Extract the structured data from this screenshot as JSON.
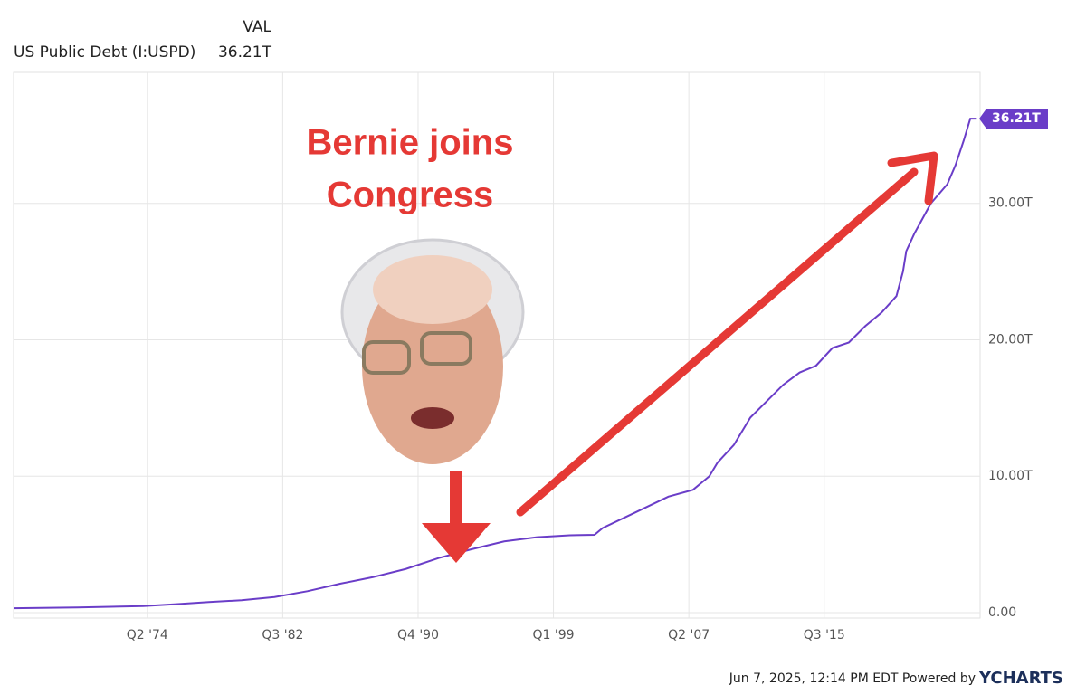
{
  "chart_data": {
    "type": "line",
    "header": {
      "column": "VAL",
      "series_label": "US Public Debt (I:USPD)",
      "current_value": "36.21T"
    },
    "annotation": {
      "lines": [
        "Bernie joins",
        "Congress"
      ]
    },
    "footer": {
      "timestamp": "Jun 7, 2025, 12:14 PM EDT Powered by",
      "brand": "YCHARTS"
    },
    "x": [
      1966.1,
      1970,
      1974,
      1976,
      1978,
      1980,
      1982,
      1984,
      1986,
      1988,
      1990,
      1992,
      1994,
      1996,
      1998,
      2000,
      2001.5,
      2002,
      2004,
      2006,
      2007.5,
      2008.5,
      2009,
      2010,
      2011,
      2012,
      2013,
      2014,
      2015,
      2016,
      2017,
      2018,
      2019,
      2019.9,
      2020.3,
      2020.5,
      2021,
      2022,
      2023,
      2023.5,
      2024,
      2024.4,
      2024.8
    ],
    "series": [
      {
        "name": "US Public Debt (I:USPD)",
        "color": "#6a3dc8",
        "values": [
          0.32,
          0.38,
          0.48,
          0.62,
          0.78,
          0.91,
          1.14,
          1.57,
          2.12,
          2.6,
          3.2,
          4.0,
          4.64,
          5.22,
          5.53,
          5.67,
          5.7,
          6.2,
          7.35,
          8.5,
          9.0,
          10.0,
          11.0,
          12.3,
          14.3,
          15.5,
          16.7,
          17.6,
          18.1,
          19.4,
          19.8,
          21.0,
          22.0,
          23.2,
          25.0,
          26.5,
          27.8,
          30.0,
          31.4,
          32.8,
          34.6,
          36.21,
          36.21
        ]
      }
    ],
    "xlim": [
      1966.1,
      2025.0
    ],
    "xticks": [
      {
        "value": 1974.25,
        "label": "Q2 '74"
      },
      {
        "value": 1982.5,
        "label": "Q3 '82"
      },
      {
        "value": 1990.75,
        "label": "Q4 '90"
      },
      {
        "value": 1999.0,
        "label": "Q1 '99"
      },
      {
        "value": 2007.25,
        "label": "Q2 '07"
      },
      {
        "value": 2015.5,
        "label": "Q3 '15"
      }
    ],
    "ylim": [
      -0.4,
      39.6
    ],
    "yticks": [
      {
        "value": 0,
        "label": "0.00"
      },
      {
        "value": 10,
        "label": "10.00T"
      },
      {
        "value": 20,
        "label": "20.00T"
      },
      {
        "value": 30,
        "label": "30.00T"
      }
    ],
    "grid": true
  }
}
